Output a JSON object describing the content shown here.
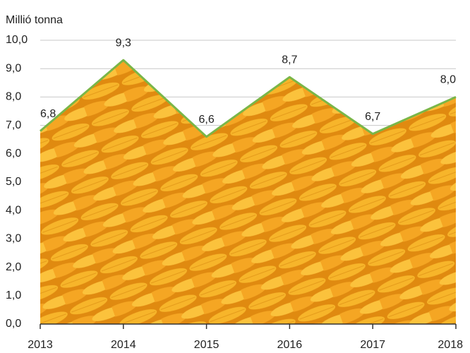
{
  "chart_data": {
    "type": "area",
    "y_axis_label": "Millió tonna",
    "x": [
      2013,
      2014,
      2015,
      2016,
      2017,
      2018
    ],
    "values": [
      6.8,
      9.3,
      6.6,
      8.7,
      6.7,
      8.0
    ],
    "value_labels": [
      "6,8",
      "9,3",
      "6,6",
      "8,7",
      "6,7",
      "8,0"
    ],
    "line_color": "#7ab648",
    "fill_color": "#f2a31c",
    "xlim": [
      2013,
      2018
    ],
    "xticks": [
      2013,
      2014,
      2015,
      2016,
      2017,
      2018
    ],
    "ylim": [
      0,
      10
    ],
    "yticks": [
      {
        "value": 0,
        "label": "0,0"
      },
      {
        "value": 1,
        "label": "1,0"
      },
      {
        "value": 2,
        "label": "2,0"
      },
      {
        "value": 3,
        "label": "3,0"
      },
      {
        "value": 4,
        "label": "4,0"
      },
      {
        "value": 5,
        "label": "5,0"
      },
      {
        "value": 6,
        "label": "6,0"
      },
      {
        "value": 7,
        "label": "7,0"
      },
      {
        "value": 8,
        "label": "8,0"
      },
      {
        "value": 9,
        "label": "9,0"
      },
      {
        "value": 10,
        "label": "10,0"
      }
    ],
    "grid": true
  }
}
